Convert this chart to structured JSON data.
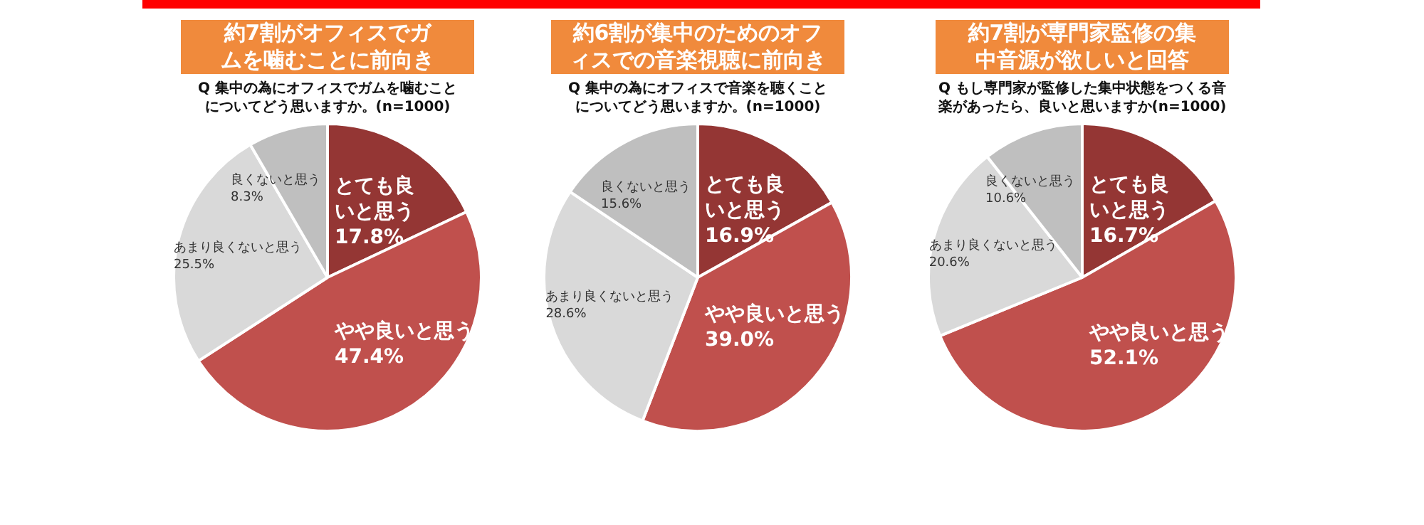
{
  "chart_data": [
    {
      "type": "pie",
      "title": "約7割がオフィスでガムを噛むことに前向き",
      "subtitle": "Q 集中の為にオフィスでガムを噛むことについてどう思いますか。(n=1000)",
      "categories": [
        "とても良いと思う",
        "やや良いと思う",
        "あまり良くないと思う",
        "良くないと思う"
      ],
      "values": [
        17.8,
        47.4,
        25.5,
        8.3
      ],
      "value_labels": [
        "17.8%",
        "47.4%",
        "25.5%",
        "8.3%"
      ],
      "colors": [
        "#943634",
        "#c0504d",
        "#d9d9d9",
        "#bfbfbf"
      ]
    },
    {
      "type": "pie",
      "title": "約6割が集中のためのオフィスでの音楽視聴に前向き",
      "subtitle": "Q 集中の為にオフィスで音楽を聴くことについてどう思いますか。(n=1000)",
      "categories": [
        "とても良いと思う",
        "やや良いと思う",
        "あまり良くないと思う",
        "良くないと思う"
      ],
      "values": [
        16.9,
        39.0,
        28.6,
        15.6
      ],
      "value_labels": [
        "16.9%",
        "39.0%",
        "28.6%",
        "15.6%"
      ],
      "colors": [
        "#943634",
        "#c0504d",
        "#d9d9d9",
        "#bfbfbf"
      ]
    },
    {
      "type": "pie",
      "title": "約7割が専門家監修の集中音源が欲しいと回答",
      "subtitle": "Q もし専門家が監修した集中状態をつくる音楽があったら、良いと思いますか(n=1000)",
      "categories": [
        "とても良いと思う",
        "やや良いと思う",
        "あまり良くないと思う",
        "良くないと思う"
      ],
      "values": [
        16.7,
        52.1,
        20.6,
        10.6
      ],
      "value_labels": [
        "16.7%",
        "52.1%",
        "20.6%",
        "10.6%"
      ],
      "colors": [
        "#943634",
        "#c0504d",
        "#d9d9d9",
        "#bfbfbf"
      ]
    }
  ]
}
